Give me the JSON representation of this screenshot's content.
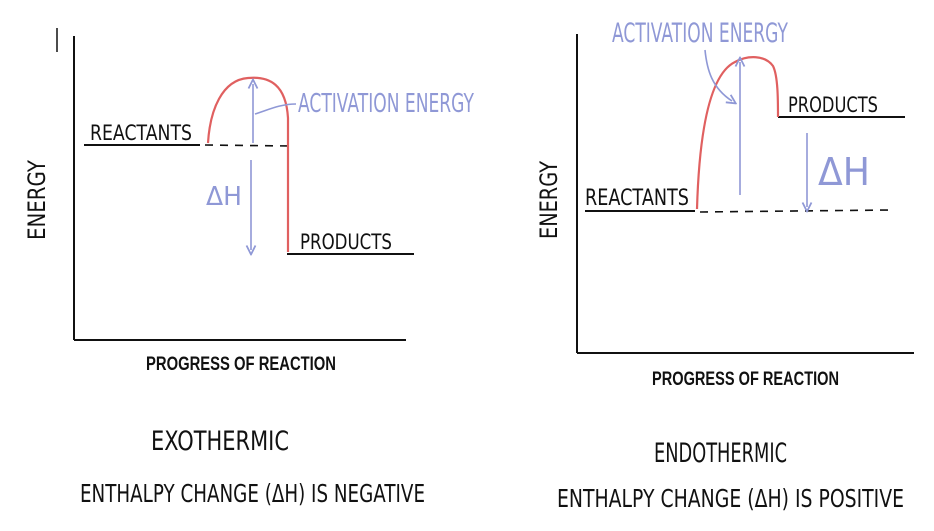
{
  "colors": {
    "ink": "#111111",
    "curve": "#e06060",
    "annotation": "#8f98d6"
  },
  "left_diagram": {
    "y_axis_label": "ENERGY",
    "x_axis_label": "PROGRESS OF REACTION",
    "reactants_label": "REACTANTS",
    "products_label": "PRODUCTS",
    "activation_label": "ACTIVATION ENERGY",
    "delta_h_label": "ΔH",
    "caption_title": "EXOTHERMIC",
    "caption_line": "ENTHALPY CHANGE (ΔH) IS NEGATIVE"
  },
  "right_diagram": {
    "y_axis_label": "ENERGY",
    "x_axis_label": "PROGRESS OF REACTION",
    "reactants_label": "REACTANTS",
    "products_label": "PRODUCTS",
    "activation_label": "ACTIVATION ENERGY",
    "delta_h_label": "ΔH",
    "caption_title": "ENDOTHERMIC",
    "caption_line": "ENTHALPY CHANGE (ΔH) IS POSITIVE"
  }
}
